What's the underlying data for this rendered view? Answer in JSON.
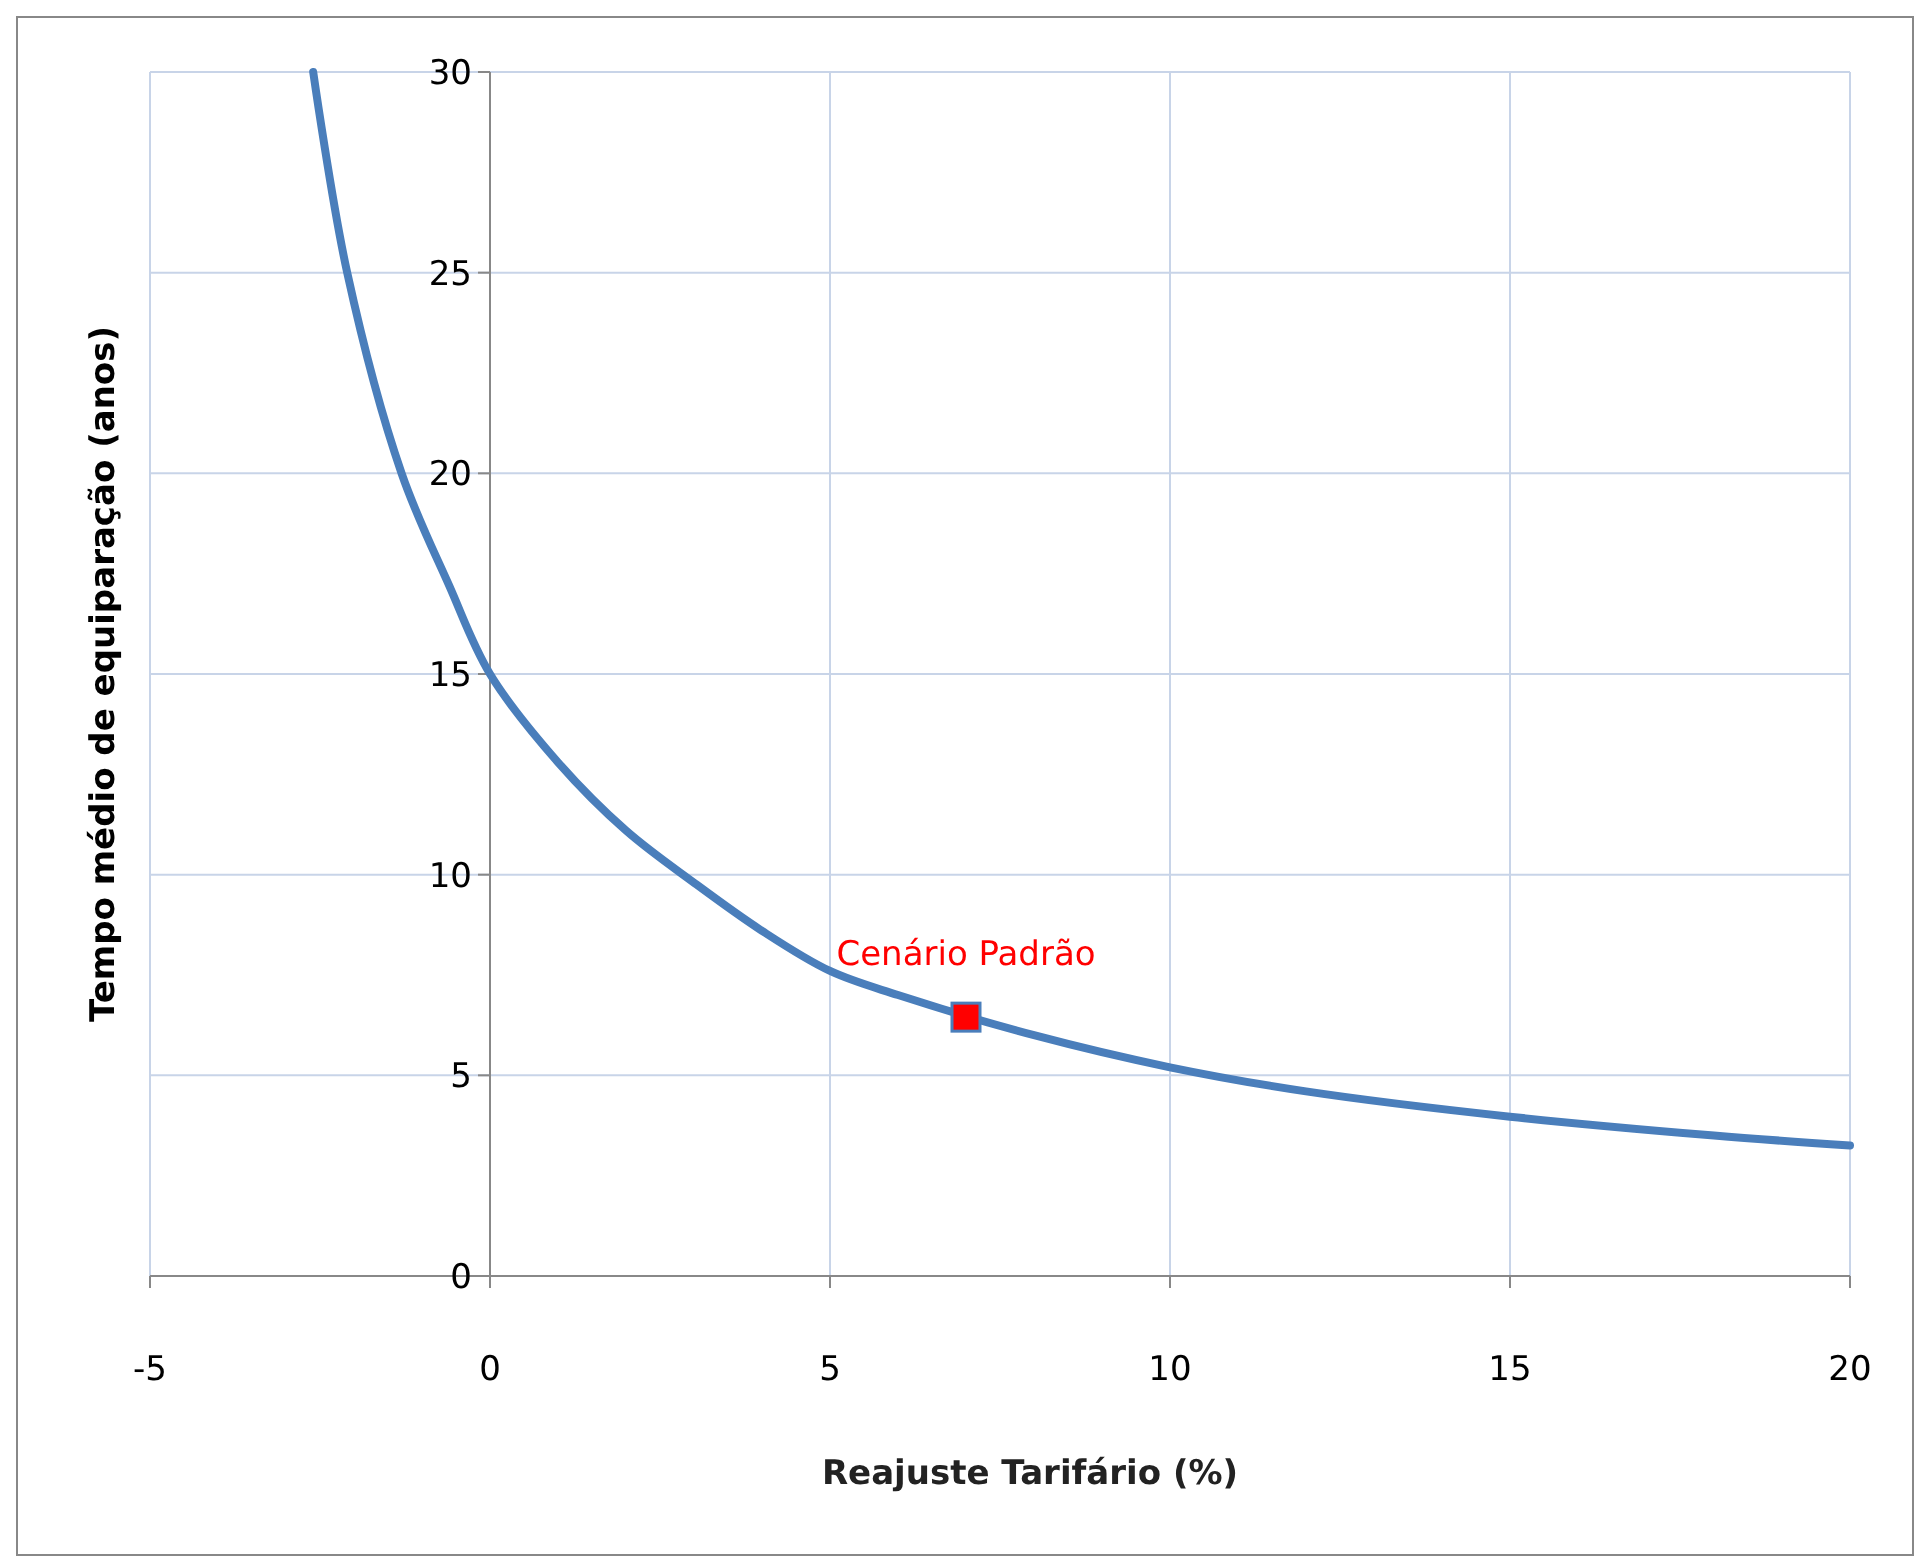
{
  "chart_data": {
    "type": "line",
    "xlabel": "Reajuste Tarifário  (%)",
    "ylabel": "Tempo médio de equiparação  (anos)",
    "xlim": [
      -5,
      20
    ],
    "xticks": [
      -5,
      0,
      5,
      10,
      15,
      20
    ],
    "ylim": [
      0,
      30
    ],
    "yticks": [
      0,
      5,
      10,
      15,
      20,
      25,
      30
    ],
    "grid": true,
    "series": [
      {
        "color": "#4a7ebb",
        "marker": "none",
        "x": [
          -2.6,
          -2.1,
          -1.3,
          -0.6,
          0,
          1,
          2,
          3,
          4,
          5,
          6,
          8,
          10,
          12,
          15,
          18,
          20
        ],
        "values": [
          30,
          25,
          20,
          17.2,
          15,
          12.8,
          11.1,
          9.8,
          8.6,
          7.6,
          7.0,
          6.0,
          5.2,
          4.6,
          3.97,
          3.5,
          3.25
        ]
      },
      {
        "type": "scatter",
        "color": "#ff0000",
        "marker": "square",
        "x": [
          7
        ],
        "values": [
          6.45
        ]
      }
    ],
    "annotations": [
      {
        "text": "Cenário Padrão",
        "x": 7,
        "y": 6.45
      }
    ]
  }
}
